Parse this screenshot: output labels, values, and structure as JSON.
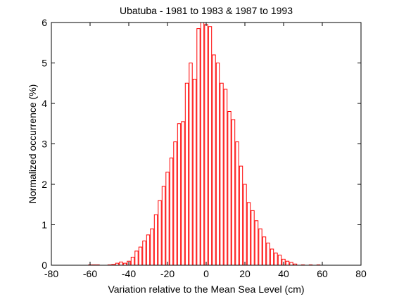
{
  "chart_data": {
    "type": "bar",
    "title": "Ubatuba - 1981 to 1983 & 1987 to 1993",
    "xlabel": "Variation relative to the Mean Sea Level (cm)",
    "ylabel": "Normalized occurrence (%)",
    "xlim": [
      -80,
      80
    ],
    "ylim": [
      0,
      6
    ],
    "xticks": [
      -80,
      -60,
      -40,
      -20,
      0,
      20,
      40,
      60,
      80
    ],
    "yticks": [
      0,
      1,
      2,
      3,
      4,
      5,
      6
    ],
    "grid": false,
    "bar_width": 1.6,
    "colors": {
      "bar_edge": "#ff0000",
      "bar_fill": "#ffffff",
      "axes": "#000000",
      "background": "#ffffff"
    },
    "x": [
      -60,
      -58,
      -56,
      -50,
      -48,
      -46,
      -44,
      -42,
      -40,
      -38,
      -36,
      -34,
      -32,
      -30,
      -28,
      -26,
      -24,
      -22,
      -20,
      -18,
      -16,
      -14,
      -12,
      -10,
      -8,
      -6,
      -4,
      -2,
      0,
      2,
      4,
      6,
      8,
      10,
      12,
      14,
      16,
      18,
      20,
      22,
      24,
      26,
      28,
      30,
      32,
      34,
      36,
      38,
      40,
      42,
      44,
      46,
      50,
      54,
      58
    ],
    "values": [
      0.01,
      0.01,
      0.01,
      0.01,
      0.02,
      0.05,
      0.08,
      0.05,
      0.1,
      0.2,
      0.35,
      0.45,
      0.6,
      0.75,
      0.9,
      1.25,
      1.6,
      1.95,
      2.3,
      2.65,
      3.05,
      3.5,
      3.55,
      4.5,
      5.0,
      4.6,
      5.85,
      6.0,
      5.95,
      5.9,
      5.2,
      5.0,
      4.5,
      4.35,
      3.8,
      3.6,
      3.05,
      2.45,
      2.0,
      1.55,
      1.35,
      1.1,
      0.9,
      0.7,
      0.55,
      0.4,
      0.3,
      0.25,
      0.15,
      0.1,
      0.07,
      0.03,
      0.01,
      0.01,
      0.01
    ]
  }
}
